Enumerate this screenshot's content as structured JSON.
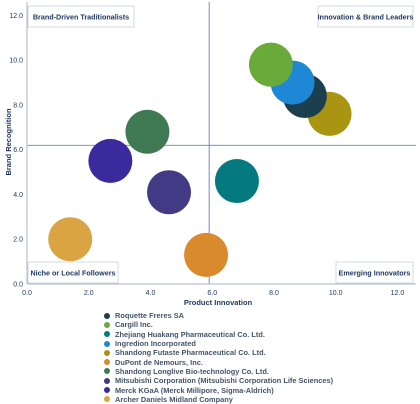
{
  "chart_data": {
    "type": "scatter",
    "title": "",
    "xlabel": "Product Innovation",
    "ylabel": "Brand Recognition",
    "xlim": [
      0,
      12.6
    ],
    "ylim": [
      0,
      12.6
    ],
    "x_ticks": [
      "0.0",
      "2.0",
      "4.0",
      "6.0",
      "8.0",
      "10.0",
      "12.0"
    ],
    "y_ticks": [
      "0.0",
      "2.0",
      "4.0",
      "6.0",
      "8.0",
      "10.0",
      "12.0"
    ],
    "x_divider": 5.9,
    "y_divider": 6.2,
    "grid": false,
    "legend_position": "bottom",
    "quadrants": {
      "top_left": "Brand-Driven Traditionalists",
      "top_right": "Innovation & Brand Leaders",
      "bottom_left": "Niche or Local Followers",
      "bottom_right": "Emerging Innovators"
    },
    "series": [
      {
        "name": "Roquette Freres SA",
        "x": 9.0,
        "y": 8.4,
        "color": "#1b3f4f"
      },
      {
        "name": "Cargill Inc.",
        "x": 7.9,
        "y": 9.8,
        "color": "#6aaa3a"
      },
      {
        "name": "Zhejiang Huakang Pharmaceutical Co. Ltd.",
        "x": 6.8,
        "y": 4.6,
        "color": "#057a7e"
      },
      {
        "name": "Ingredion Incorporated",
        "x": 8.6,
        "y": 9.0,
        "color": "#1e88d6"
      },
      {
        "name": "Shandong Futaste Pharmaceutical Co. Ltd.",
        "x": 9.8,
        "y": 7.6,
        "color": "#a99512"
      },
      {
        "name": "DuPont de Nemours, Inc.",
        "x": 5.8,
        "y": 1.3,
        "color": "#d88a2c"
      },
      {
        "name": "Shandong Longlive Bio-technology Co. Ltd.",
        "x": 3.9,
        "y": 6.8,
        "color": "#3f7a55"
      },
      {
        "name": "Mitsubishi Corporation (Mitsubishi Corporation Life Sciences)",
        "x": 4.6,
        "y": 4.1,
        "color": "#433a86"
      },
      {
        "name": "Merck KGaA (Merck Millipore, Sigma-Aldrich)",
        "x": 2.7,
        "y": 5.5,
        "color": "#3a2a9e"
      },
      {
        "name": "Archer Daniels Midland Company",
        "x": 1.4,
        "y": 2.0,
        "color": "#d9a441"
      }
    ],
    "draw_order": [
      4,
      0,
      3,
      1,
      2,
      5,
      6,
      7,
      8,
      9
    ]
  }
}
